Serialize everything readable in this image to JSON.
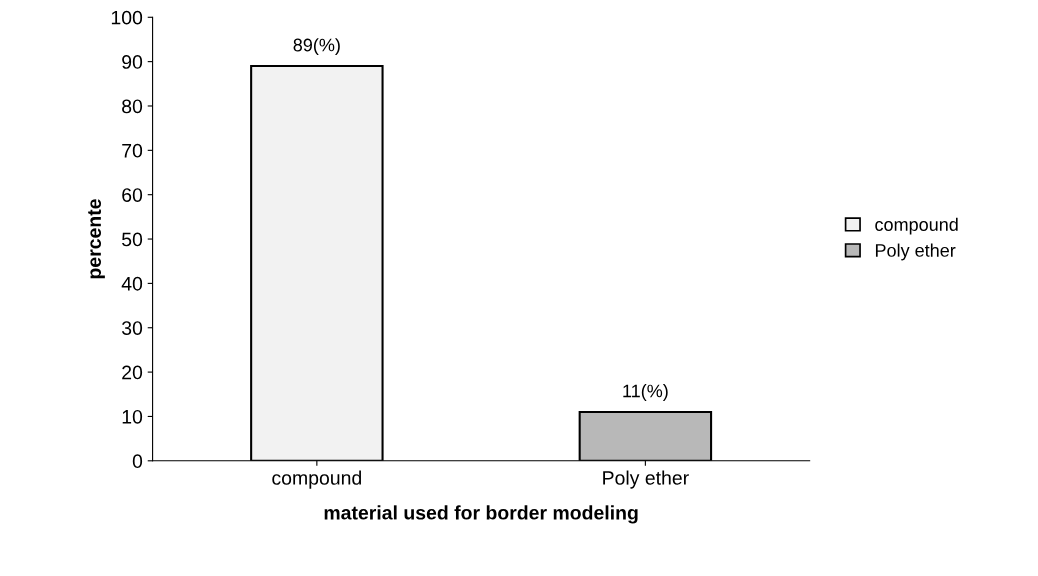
{
  "chart_data": {
    "type": "bar",
    "xlabel": "material used for border modeling",
    "ylabel": "percente",
    "categories": [
      "compound",
      "Poly ether"
    ],
    "series": [
      {
        "name": "compound",
        "color": "#f2f2f2",
        "values": [
          89,
          null
        ],
        "value_labels": [
          "89(%)",
          null
        ]
      },
      {
        "name": "Poly ether",
        "color": "#b8b8b8",
        "values": [
          null,
          11
        ],
        "value_labels": [
          null,
          "11(%)"
        ]
      }
    ],
    "ylim": [
      0,
      100
    ],
    "yticks": [
      0,
      10,
      20,
      30,
      40,
      50,
      60,
      70,
      80,
      90,
      100
    ],
    "grid": false,
    "legend": "right"
  }
}
